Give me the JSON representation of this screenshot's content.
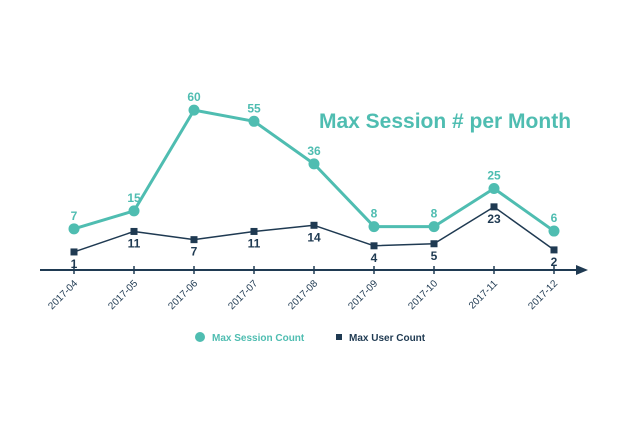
{
  "chart_data": {
    "type": "line",
    "title": "Max Session # per Month",
    "categories": [
      "2017-04",
      "2017-05",
      "2017-06",
      "2017-07",
      "2017-08",
      "2017-09",
      "2017-10",
      "2017-11",
      "2017-12"
    ],
    "series": [
      {
        "name": "Max Session Count",
        "values": [
          7,
          15,
          60,
          55,
          36,
          8,
          8,
          25,
          6
        ],
        "color": "#4fbdb1",
        "marker": "circle"
      },
      {
        "name": "Max User Count",
        "values": [
          1,
          11,
          7,
          11,
          14,
          4,
          5,
          23,
          2
        ],
        "color": "#1f3a52",
        "marker": "square"
      }
    ],
    "axis_color": "#1f3a52",
    "grid": false,
    "legend_position": "bottom-center"
  }
}
